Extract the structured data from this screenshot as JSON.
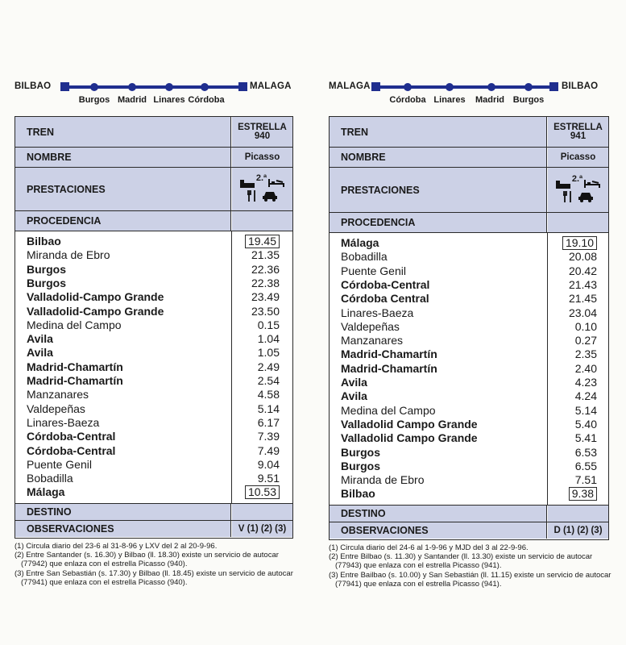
{
  "left": {
    "route": {
      "origin": "BILBAO",
      "destination": "MALAGA",
      "stops": [
        "Burgos",
        "Madrid",
        "Linares",
        "Córdoba"
      ]
    },
    "table": {
      "tren_label": "TREN",
      "tren_value_1": "ESTRELLA",
      "tren_value_2": "940",
      "nombre_label": "NOMBRE",
      "nombre_value": "Picasso",
      "prestaciones_label": "PRESTACIONES",
      "prestaciones_class": "2.ª",
      "procedencia_label": "PROCEDENCIA",
      "stations": [
        {
          "name": "Bilbao",
          "bold": true,
          "time": "19.45",
          "boxed": true
        },
        {
          "name": "Miranda de Ebro",
          "bold": false,
          "time": "21.35"
        },
        {
          "name": "Burgos",
          "bold": true,
          "time": "22.36"
        },
        {
          "name": "Burgos",
          "bold": true,
          "time": "22.38"
        },
        {
          "name": "Valladolid-Campo Grande",
          "bold": true,
          "time": "23.49"
        },
        {
          "name": "Valladolid-Campo Grande",
          "bold": true,
          "time": "23.50"
        },
        {
          "name": "Medina del Campo",
          "bold": false,
          "time": "0.15"
        },
        {
          "name": "Avila",
          "bold": true,
          "time": "1.04"
        },
        {
          "name": "Avila",
          "bold": true,
          "time": "1.05"
        },
        {
          "name": "Madrid-Chamartín",
          "bold": true,
          "time": "2.49"
        },
        {
          "name": "Madrid-Chamartín",
          "bold": true,
          "time": "2.54"
        },
        {
          "name": "Manzanares",
          "bold": false,
          "time": "4.58"
        },
        {
          "name": "Valdepeñas",
          "bold": false,
          "time": "5.14"
        },
        {
          "name": "Linares-Baeza",
          "bold": false,
          "time": "6.17"
        },
        {
          "name": "Córdoba-Central",
          "bold": true,
          "time": "7.39"
        },
        {
          "name": "Córdoba-Central",
          "bold": true,
          "time": "7.49"
        },
        {
          "name": "Puente Genil",
          "bold": false,
          "time": "9.04"
        },
        {
          "name": "Bobadilla",
          "bold": false,
          "time": "9.51"
        },
        {
          "name": "Málaga",
          "bold": true,
          "time": "10.53",
          "boxed": true
        }
      ],
      "destino_label": "DESTINO",
      "observaciones_label": "OBSERVACIONES",
      "observaciones_value": "V (1) (2) (3)"
    },
    "footnotes": [
      "(1) Circula diario del 23-6 al 31-8-96 y LXV del 2 al 20-9-96.",
      "(2) Entre Santander (s. 16.30) y Bilbao (ll. 18.30) existe un servicio de autocar",
      "(77942) que enlaza con el estrella Picasso (940).",
      "(3) Entre San Sebastián (s. 17.30) y Bilbao (ll. 18.45) existe un servicio de autocar",
      "(77941) que enlaza con el estrella Picasso (940)."
    ]
  },
  "right": {
    "route": {
      "origin": "MALAGA",
      "destination": "BILBAO",
      "stops": [
        "Córdoba",
        "Linares",
        "Madrid",
        "Burgos"
      ]
    },
    "table": {
      "tren_label": "TREN",
      "tren_value_1": "ESTRELLA",
      "tren_value_2": "941",
      "nombre_label": "NOMBRE",
      "nombre_value": "Picasso",
      "prestaciones_label": "PRESTACIONES",
      "prestaciones_class": "2.ª",
      "procedencia_label": "PROCEDENCIA",
      "stations": [
        {
          "name": "Málaga",
          "bold": true,
          "time": "19.10",
          "boxed": true
        },
        {
          "name": "Bobadilla",
          "bold": false,
          "time": "20.08"
        },
        {
          "name": "Puente Genil",
          "bold": false,
          "time": "20.42"
        },
        {
          "name": "Córdoba-Central",
          "bold": true,
          "time": "21.43"
        },
        {
          "name": "Córdoba Central",
          "bold": true,
          "time": "21.45"
        },
        {
          "name": "Linares-Baeza",
          "bold": false,
          "time": "23.04"
        },
        {
          "name": "Valdepeñas",
          "bold": false,
          "time": "0.10"
        },
        {
          "name": "Manzanares",
          "bold": false,
          "time": "0.27"
        },
        {
          "name": "Madrid-Chamartín",
          "bold": true,
          "time": "2.35"
        },
        {
          "name": "Madrid-Chamartín",
          "bold": true,
          "time": "2.40"
        },
        {
          "name": "Avila",
          "bold": true,
          "time": "4.23"
        },
        {
          "name": "Avila",
          "bold": true,
          "time": "4.24"
        },
        {
          "name": "Medina del Campo",
          "bold": false,
          "time": "5.14"
        },
        {
          "name": "Valladolid Campo Grande",
          "bold": true,
          "time": "5.40"
        },
        {
          "name": "Valladolid Campo Grande",
          "bold": true,
          "time": "5.41"
        },
        {
          "name": "Burgos",
          "bold": true,
          "time": "6.53"
        },
        {
          "name": "Burgos",
          "bold": true,
          "time": "6.55"
        },
        {
          "name": "Miranda de Ebro",
          "bold": false,
          "time": "7.51"
        },
        {
          "name": "Bilbao",
          "bold": true,
          "time": "9.38",
          "boxed": true
        }
      ],
      "destino_label": "DESTINO",
      "observaciones_label": "OBSERVACIONES",
      "observaciones_value": "D (1) (2) (3)"
    },
    "footnotes": [
      "(1) Circula diario del 24-6 al 1-9-96 y MJD del 3 al 22-9-96.",
      "(2) Entre Bilbao (s. 11.30) y Santander (ll. 13.30) existe un servicio de autocar",
      "(77943) que enlaza con el estrella Picasso (941).",
      "(3) Entre Bailbao (s. 10.00) y San Sebastián (ll. 11.15) existe un servicio de autocar",
      "(77941) que enlaza con el estrella Picasso (941)."
    ]
  },
  "colors": {
    "route_blue": "#1f2e8f",
    "header_shade": "#ccd1e6"
  },
  "icons": [
    "bed-icon",
    "couchette-icon",
    "restaurant-icon",
    "car-transport-icon"
  ]
}
